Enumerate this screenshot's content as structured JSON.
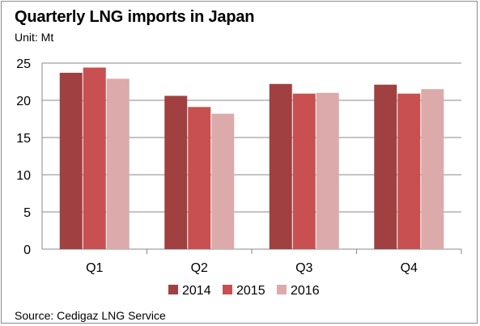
{
  "chart_data": {
    "type": "bar",
    "title": "Quarterly LNG imports in Japan",
    "subtitle": "Unit: Mt",
    "source": "Source: Cedigaz LNG Service",
    "categories": [
      "Q1",
      "Q2",
      "Q3",
      "Q4"
    ],
    "series": [
      {
        "name": "2014",
        "color": "#a04040",
        "values": [
          23.7,
          20.6,
          22.2,
          22.1
        ]
      },
      {
        "name": "2015",
        "color": "#c85050",
        "values": [
          24.4,
          19.1,
          20.9,
          20.9
        ]
      },
      {
        "name": "2016",
        "color": "#dcaaaa",
        "values": [
          22.9,
          18.2,
          21.0,
          21.5
        ]
      }
    ],
    "ylim": [
      0,
      25
    ],
    "yticks": [
      "0",
      "5",
      "10",
      "15",
      "20",
      "25"
    ],
    "grid": true,
    "legend_position": "bottom",
    "xlabel": "",
    "ylabel": ""
  }
}
